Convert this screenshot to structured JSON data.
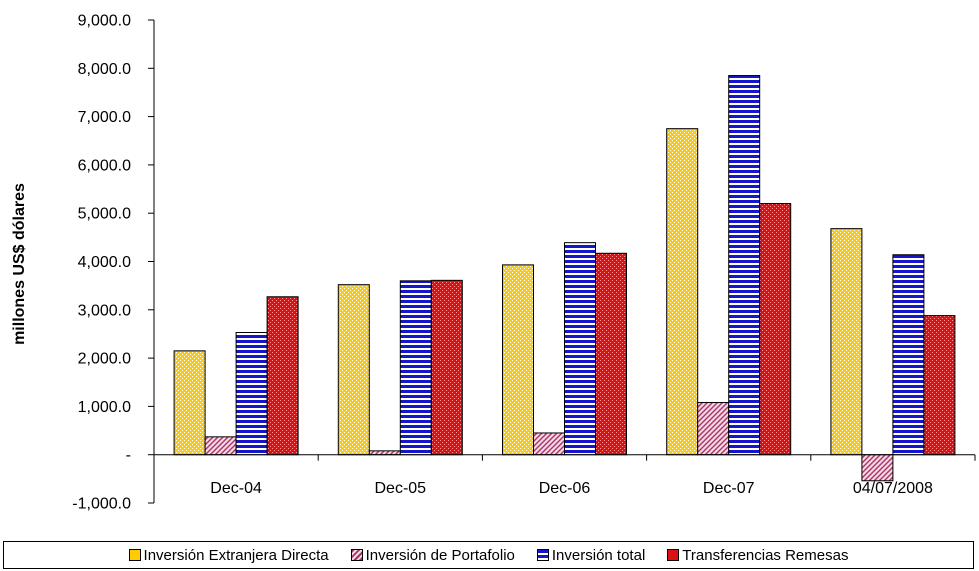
{
  "chart_data": {
    "type": "bar",
    "ylabel": "millones US$ dólares",
    "categories": [
      "Dec-04",
      "Dec-05",
      "Dec-06",
      "Dec-07",
      "04/07/2008"
    ],
    "ylim": [
      -1000,
      9000
    ],
    "yticks": [
      -1000,
      0,
      1000,
      2000,
      3000,
      4000,
      5000,
      6000,
      7000,
      8000,
      9000
    ],
    "ytick_labels": [
      "-1,000.0",
      "-",
      "1,000.0",
      "2,000.0",
      "3,000.0",
      "4,000.0",
      "5,000.0",
      "6,000.0",
      "7,000.0",
      "8,000.0",
      "9,000.0"
    ],
    "legend_position": "bottom",
    "grid": false,
    "series": [
      {
        "name": "Inversión Extranjera Directa",
        "color": "#FFCC00",
        "pattern": "dots",
        "values": [
          2150,
          3520,
          3930,
          6750,
          4680
        ]
      },
      {
        "name": "Inversión de Portafolio",
        "color": "#CC6699",
        "pattern": "diagonal",
        "values": [
          370,
          80,
          450,
          1080,
          -540
        ]
      },
      {
        "name": "Inversión total",
        "color": "#0000CC",
        "pattern": "horizontal",
        "values": [
          2530,
          3600,
          4390,
          7850,
          4140
        ]
      },
      {
        "name": "Transferencias Remesas",
        "color": "#DD1111",
        "pattern": "checker",
        "values": [
          3270,
          3610,
          4170,
          5200,
          2880
        ]
      }
    ]
  }
}
